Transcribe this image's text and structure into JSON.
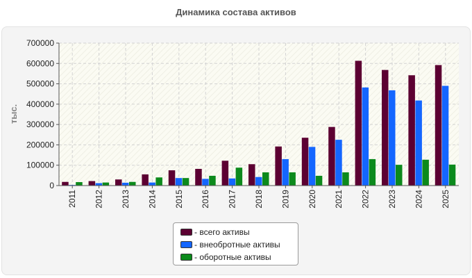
{
  "chart_data": {
    "type": "bar",
    "title": "Динамика состава активов",
    "ylabel": "тыс.",
    "xlabel": "",
    "ylim": [
      0,
      700000
    ],
    "yticks": [
      0,
      100000,
      200000,
      300000,
      400000,
      500000,
      600000,
      700000
    ],
    "grid": true,
    "legend_position": "bottom",
    "categories": [
      "2011",
      "2012",
      "2013",
      "2014",
      "2015",
      "2016",
      "2017",
      "2018",
      "2019",
      "2020",
      "2021",
      "2022",
      "2023",
      "2024",
      "2025"
    ],
    "series": [
      {
        "name": "- всего активы",
        "color": "#5c0032",
        "values": [
          18000,
          22000,
          30000,
          55000,
          75000,
          82000,
          122000,
          105000,
          192000,
          235000,
          288000,
          613000,
          568000,
          542000,
          592000
        ]
      },
      {
        "name": "- внеобротные активы",
        "color": "#1466ff",
        "values": [
          3000,
          12000,
          14000,
          15000,
          37000,
          33000,
          35000,
          42000,
          130000,
          190000,
          225000,
          482000,
          468000,
          418000,
          490000
        ]
      },
      {
        "name": "- оборотные активы",
        "color": "#0c8a1c",
        "values": [
          17000,
          15000,
          18000,
          40000,
          37000,
          48000,
          88000,
          65000,
          65000,
          48000,
          65000,
          130000,
          102000,
          127000,
          103000
        ]
      }
    ]
  }
}
